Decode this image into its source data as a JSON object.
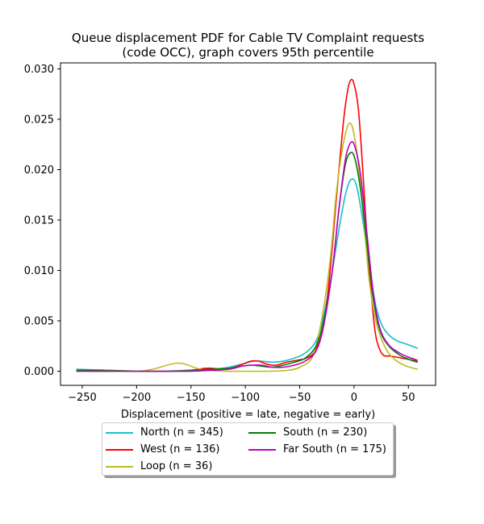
{
  "chart_data": {
    "type": "line",
    "title": "Queue displacement PDF for Cable TV Complaint  requests",
    "subtitle": "(code OCC), graph covers 95th percentile",
    "xlabel": "Displacement (positive = late, negative = early)",
    "ylabel": "",
    "xlim": [
      -270,
      75
    ],
    "ylim": [
      -0.0014,
      0.0306
    ],
    "xticks": [
      -250,
      -200,
      -150,
      -100,
      -50,
      0,
      50
    ],
    "xtick_labels": [
      "−250",
      "−200",
      "−150",
      "−100",
      "−50",
      "0",
      "50"
    ],
    "yticks": [
      0.0,
      0.005,
      0.01,
      0.015,
      0.02,
      0.025,
      0.03
    ],
    "ytick_labels": [
      "0.000",
      "0.005",
      "0.010",
      "0.015",
      "0.020",
      "0.025",
      "0.030"
    ],
    "grid": false,
    "legend_position": "below-center",
    "series": [
      {
        "name": "North (n = 345)",
        "color": "#17becf",
        "points": [
          [
            -255,
            0.0002
          ],
          [
            -230,
            0.0001
          ],
          [
            -200,
            0.0
          ],
          [
            -180,
            0.0
          ],
          [
            -150,
            0.0001
          ],
          [
            -130,
            0.0002
          ],
          [
            -115,
            0.0004
          ],
          [
            -100,
            0.0008
          ],
          [
            -92,
            0.001
          ],
          [
            -85,
            0.001
          ],
          [
            -75,
            0.0009
          ],
          [
            -65,
            0.001
          ],
          [
            -55,
            0.0013
          ],
          [
            -45,
            0.0018
          ],
          [
            -35,
            0.003
          ],
          [
            -28,
            0.0055
          ],
          [
            -20,
            0.01
          ],
          [
            -14,
            0.014
          ],
          [
            -8,
            0.0175
          ],
          [
            -3,
            0.019
          ],
          [
            2,
            0.0185
          ],
          [
            8,
            0.015
          ],
          [
            14,
            0.0105
          ],
          [
            20,
            0.0065
          ],
          [
            26,
            0.0045
          ],
          [
            33,
            0.0035
          ],
          [
            40,
            0.003
          ],
          [
            48,
            0.0027
          ],
          [
            58,
            0.0023
          ]
        ]
      },
      {
        "name": "West (n = 136)",
        "color": "#ff0000",
        "points": [
          [
            -255,
            0.0
          ],
          [
            -230,
            0.0
          ],
          [
            -200,
            0.0
          ],
          [
            -170,
            0.0
          ],
          [
            -150,
            0.0001
          ],
          [
            -135,
            0.0003
          ],
          [
            -120,
            0.0002
          ],
          [
            -110,
            0.0004
          ],
          [
            -100,
            0.0008
          ],
          [
            -95,
            0.001
          ],
          [
            -88,
            0.001
          ],
          [
            -80,
            0.0007
          ],
          [
            -72,
            0.0006
          ],
          [
            -62,
            0.0009
          ],
          [
            -52,
            0.0011
          ],
          [
            -44,
            0.0013
          ],
          [
            -36,
            0.002
          ],
          [
            -28,
            0.0045
          ],
          [
            -22,
            0.01
          ],
          [
            -16,
            0.0175
          ],
          [
            -10,
            0.0245
          ],
          [
            -6,
            0.0278
          ],
          [
            -3,
            0.0289
          ],
          [
            0,
            0.0285
          ],
          [
            4,
            0.026
          ],
          [
            8,
            0.02
          ],
          [
            12,
            0.013
          ],
          [
            16,
            0.0075
          ],
          [
            20,
            0.0035
          ],
          [
            26,
            0.0017
          ],
          [
            34,
            0.0015
          ],
          [
            44,
            0.0013
          ],
          [
            58,
            0.001
          ]
        ]
      },
      {
        "name": "Loop (n = 36)",
        "color": "#bcbd22",
        "points": [
          [
            -255,
            0.0
          ],
          [
            -220,
            0.0
          ],
          [
            -200,
            0.0
          ],
          [
            -185,
            0.0002
          ],
          [
            -172,
            0.0006
          ],
          [
            -163,
            0.0008
          ],
          [
            -155,
            0.0007
          ],
          [
            -145,
            0.0003
          ],
          [
            -135,
            0.0001
          ],
          [
            -120,
            0.0
          ],
          [
            -100,
            0.0
          ],
          [
            -80,
            0.0
          ],
          [
            -60,
            0.0001
          ],
          [
            -48,
            0.0005
          ],
          [
            -38,
            0.0015
          ],
          [
            -30,
            0.005
          ],
          [
            -22,
            0.011
          ],
          [
            -16,
            0.018
          ],
          [
            -10,
            0.0225
          ],
          [
            -5,
            0.0245
          ],
          [
            -1,
            0.024
          ],
          [
            4,
            0.0205
          ],
          [
            9,
            0.015
          ],
          [
            14,
            0.009
          ],
          [
            20,
            0.005
          ],
          [
            28,
            0.0025
          ],
          [
            36,
            0.0013
          ],
          [
            46,
            0.0006
          ],
          [
            58,
            0.0002
          ]
        ]
      },
      {
        "name": "South (n = 230)",
        "color": "#008000",
        "points": [
          [
            -255,
            0.0001
          ],
          [
            -230,
            0.0001
          ],
          [
            -200,
            0.0
          ],
          [
            -170,
            0.0
          ],
          [
            -150,
            0.0001
          ],
          [
            -130,
            0.0002
          ],
          [
            -115,
            0.0003
          ],
          [
            -103,
            0.0005
          ],
          [
            -95,
            0.0006
          ],
          [
            -85,
            0.0005
          ],
          [
            -75,
            0.0004
          ],
          [
            -65,
            0.0006
          ],
          [
            -55,
            0.0009
          ],
          [
            -45,
            0.0013
          ],
          [
            -35,
            0.0025
          ],
          [
            -28,
            0.005
          ],
          [
            -20,
            0.01
          ],
          [
            -14,
            0.016
          ],
          [
            -8,
            0.0205
          ],
          [
            -3,
            0.0217
          ],
          [
            1,
            0.021
          ],
          [
            6,
            0.018
          ],
          [
            12,
            0.0125
          ],
          [
            18,
            0.007
          ],
          [
            24,
            0.004
          ],
          [
            32,
            0.0025
          ],
          [
            42,
            0.0016
          ],
          [
            50,
            0.0012
          ],
          [
            58,
            0.0009
          ]
        ]
      },
      {
        "name": "Far South (n = 175)",
        "color": "#bf00bf",
        "points": [
          [
            -255,
            0.0
          ],
          [
            -230,
            0.0
          ],
          [
            -200,
            0.0
          ],
          [
            -170,
            0.0
          ],
          [
            -150,
            0.0
          ],
          [
            -130,
            0.0001
          ],
          [
            -115,
            0.0002
          ],
          [
            -103,
            0.0005
          ],
          [
            -95,
            0.0006
          ],
          [
            -85,
            0.0006
          ],
          [
            -75,
            0.0004
          ],
          [
            -65,
            0.0004
          ],
          [
            -55,
            0.0006
          ],
          [
            -45,
            0.001
          ],
          [
            -35,
            0.002
          ],
          [
            -28,
            0.0045
          ],
          [
            -20,
            0.01
          ],
          [
            -14,
            0.016
          ],
          [
            -8,
            0.021
          ],
          [
            -3,
            0.0227
          ],
          [
            1,
            0.0222
          ],
          [
            6,
            0.0195
          ],
          [
            12,
            0.0135
          ],
          [
            18,
            0.0075
          ],
          [
            24,
            0.0042
          ],
          [
            32,
            0.0026
          ],
          [
            42,
            0.0018
          ],
          [
            50,
            0.0014
          ],
          [
            58,
            0.0011
          ]
        ]
      }
    ]
  }
}
